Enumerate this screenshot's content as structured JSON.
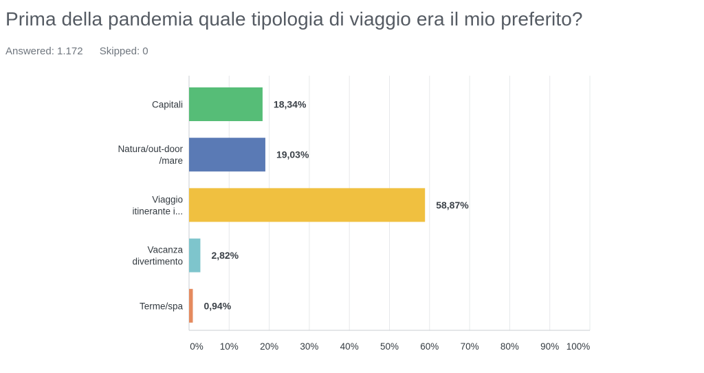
{
  "title": "Prima della pandemia quale tipologia di viaggio era il mio preferito?",
  "answered": "Answered: 1.172",
  "skipped": "Skipped: 0",
  "chart_data": {
    "type": "bar",
    "orientation": "horizontal",
    "categories": [
      [
        "Capitali"
      ],
      [
        "Natura/out-door",
        "/mare"
      ],
      [
        "Viaggio",
        "itinerante i..."
      ],
      [
        "Vacanza",
        "divertimento"
      ],
      [
        "Terme/spa"
      ]
    ],
    "values": [
      18.34,
      19.03,
      58.87,
      2.82,
      0.94
    ],
    "value_labels": [
      "18,34%",
      "19,03%",
      "58,87%",
      "2,82%",
      "0,94%"
    ],
    "colors": [
      "#56bd77",
      "#5a7ab5",
      "#f0c040",
      "#7ec5cc",
      "#e58a5e"
    ],
    "xlim": [
      0,
      100
    ],
    "ticks": [
      "0%",
      "10%",
      "20%",
      "30%",
      "40%",
      "50%",
      "60%",
      "70%",
      "80%",
      "90%",
      "100%"
    ],
    "grid": true
  }
}
